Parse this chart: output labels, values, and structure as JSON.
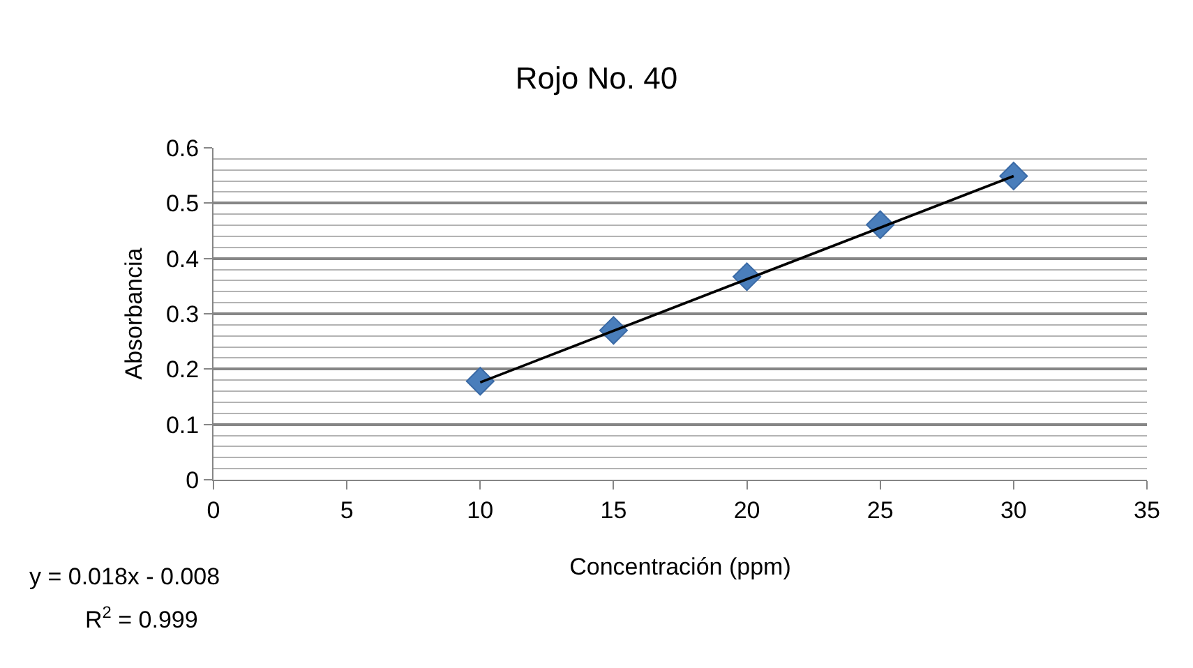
{
  "chart_data": {
    "type": "scatter",
    "title": "Rojo No. 40",
    "xlabel": "Concentración (ppm)",
    "ylabel": "Absorbancia",
    "series": [
      {
        "color": "#4a7ebb",
        "marker": "diamond",
        "x": [
          10,
          15,
          20,
          25,
          30
        ],
        "values": [
          0.178,
          0.27,
          0.367,
          0.461,
          0.549
        ]
      },
      {
        "type": "line",
        "color": "#000000",
        "marker": "none",
        "x": [
          10,
          30
        ],
        "values": [
          0.176,
          0.549
        ]
      }
    ],
    "xlim": [
      0,
      35
    ],
    "xticks": [
      0,
      5,
      10,
      15,
      20,
      25,
      30,
      35
    ],
    "ylim": [
      0,
      0.6
    ],
    "yticks": [
      0,
      0.1,
      0.2,
      0.3,
      0.4,
      0.5,
      0.6
    ],
    "grid": "y",
    "annotations": [
      "y = 0.018x - 0.008",
      "R$^{2}$ = 0.999"
    ]
  }
}
